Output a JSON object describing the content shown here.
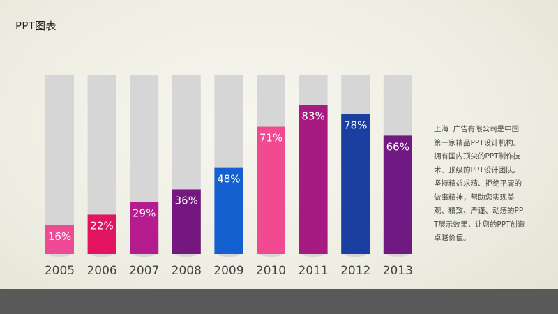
{
  "page": {
    "title": "PPT图表",
    "description": "上海  广告有限公司是中国第一家精品PPT设计机构。拥有国内顶尖的PPT制作技术、顶级的PPT设计团队。 坚持精益求精、拒绝平庸的做事精神，帮助您实现美观、精致、严谨、动感的PPT展示效果，让您的PPT创造卓越价值。"
  },
  "chart_data": {
    "type": "bar",
    "categories": [
      "2005",
      "2006",
      "2007",
      "2008",
      "2009",
      "2010",
      "2011",
      "2012",
      "2013"
    ],
    "values": [
      16,
      22,
      29,
      36,
      48,
      71,
      83,
      78,
      66
    ],
    "value_labels": [
      "16%",
      "22%",
      "29%",
      "36%",
      "48%",
      "71%",
      "83%",
      "78%",
      "66%"
    ],
    "ylim": [
      0,
      100
    ],
    "title": "",
    "xlabel": "",
    "ylabel": "",
    "grid": false,
    "legend": "none",
    "track_color": "#d6d6d6",
    "colors": [
      "#ee4a96",
      "#e2145f",
      "#b51c8e",
      "#74177e",
      "#1560d0",
      "#f24a90",
      "#a61a82",
      "#1a3fa0",
      "#711982"
    ]
  }
}
